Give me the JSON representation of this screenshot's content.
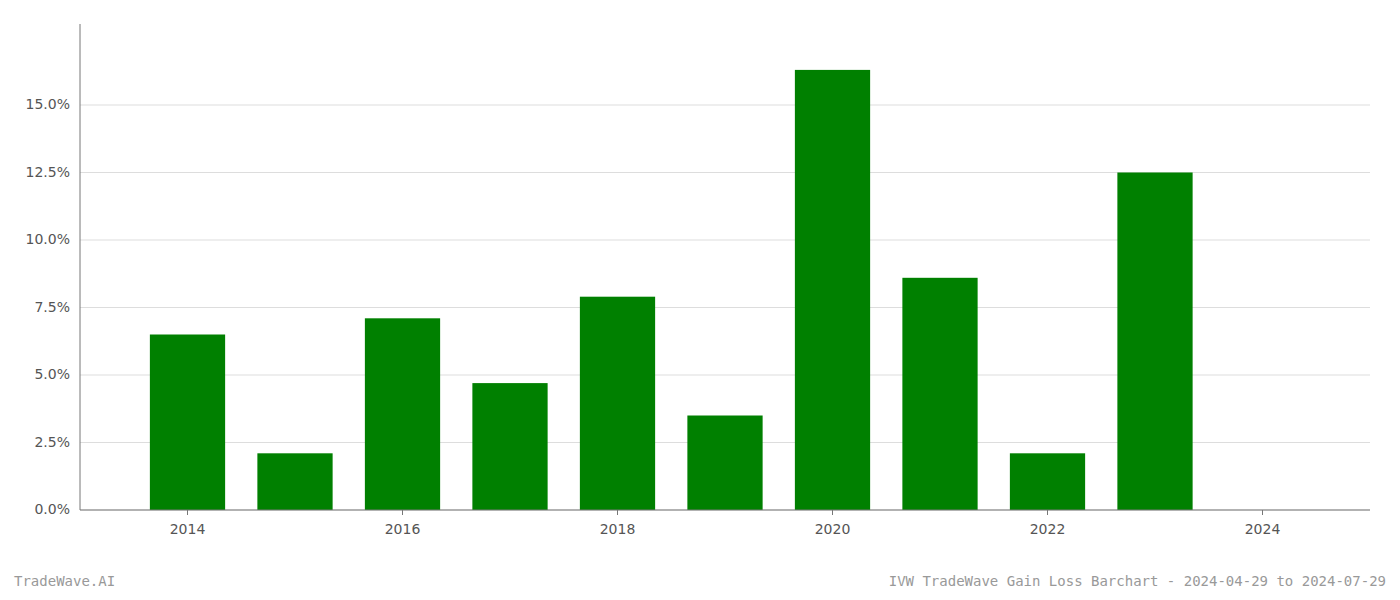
{
  "chart_data": {
    "type": "bar",
    "x": [
      2014,
      2015,
      2016,
      2017,
      2018,
      2019,
      2020,
      2021,
      2022,
      2023
    ],
    "values": [
      0.065,
      0.021,
      0.071,
      0.047,
      0.079,
      0.035,
      0.163,
      0.086,
      0.021,
      0.125
    ],
    "color": "#008000",
    "ylim": [
      0,
      0.18
    ],
    "yticks": [
      {
        "value": 0.0,
        "label": "0.0%"
      },
      {
        "value": 0.025,
        "label": "2.5%"
      },
      {
        "value": 0.05,
        "label": "5.0%"
      },
      {
        "value": 0.075,
        "label": "7.5%"
      },
      {
        "value": 0.1,
        "label": "10.0%"
      },
      {
        "value": 0.125,
        "label": "12.5%"
      },
      {
        "value": 0.15,
        "label": "15.0%"
      }
    ],
    "xlim": [
      2013.0,
      2025.0
    ],
    "xticks": [
      2014,
      2016,
      2018,
      2020,
      2022,
      2024
    ],
    "grid": true,
    "annotations": [
      "TradeWave.AI",
      "IVW TradeWave Gain Loss Barchart - 2024-04-29 to 2024-07-29"
    ]
  }
}
